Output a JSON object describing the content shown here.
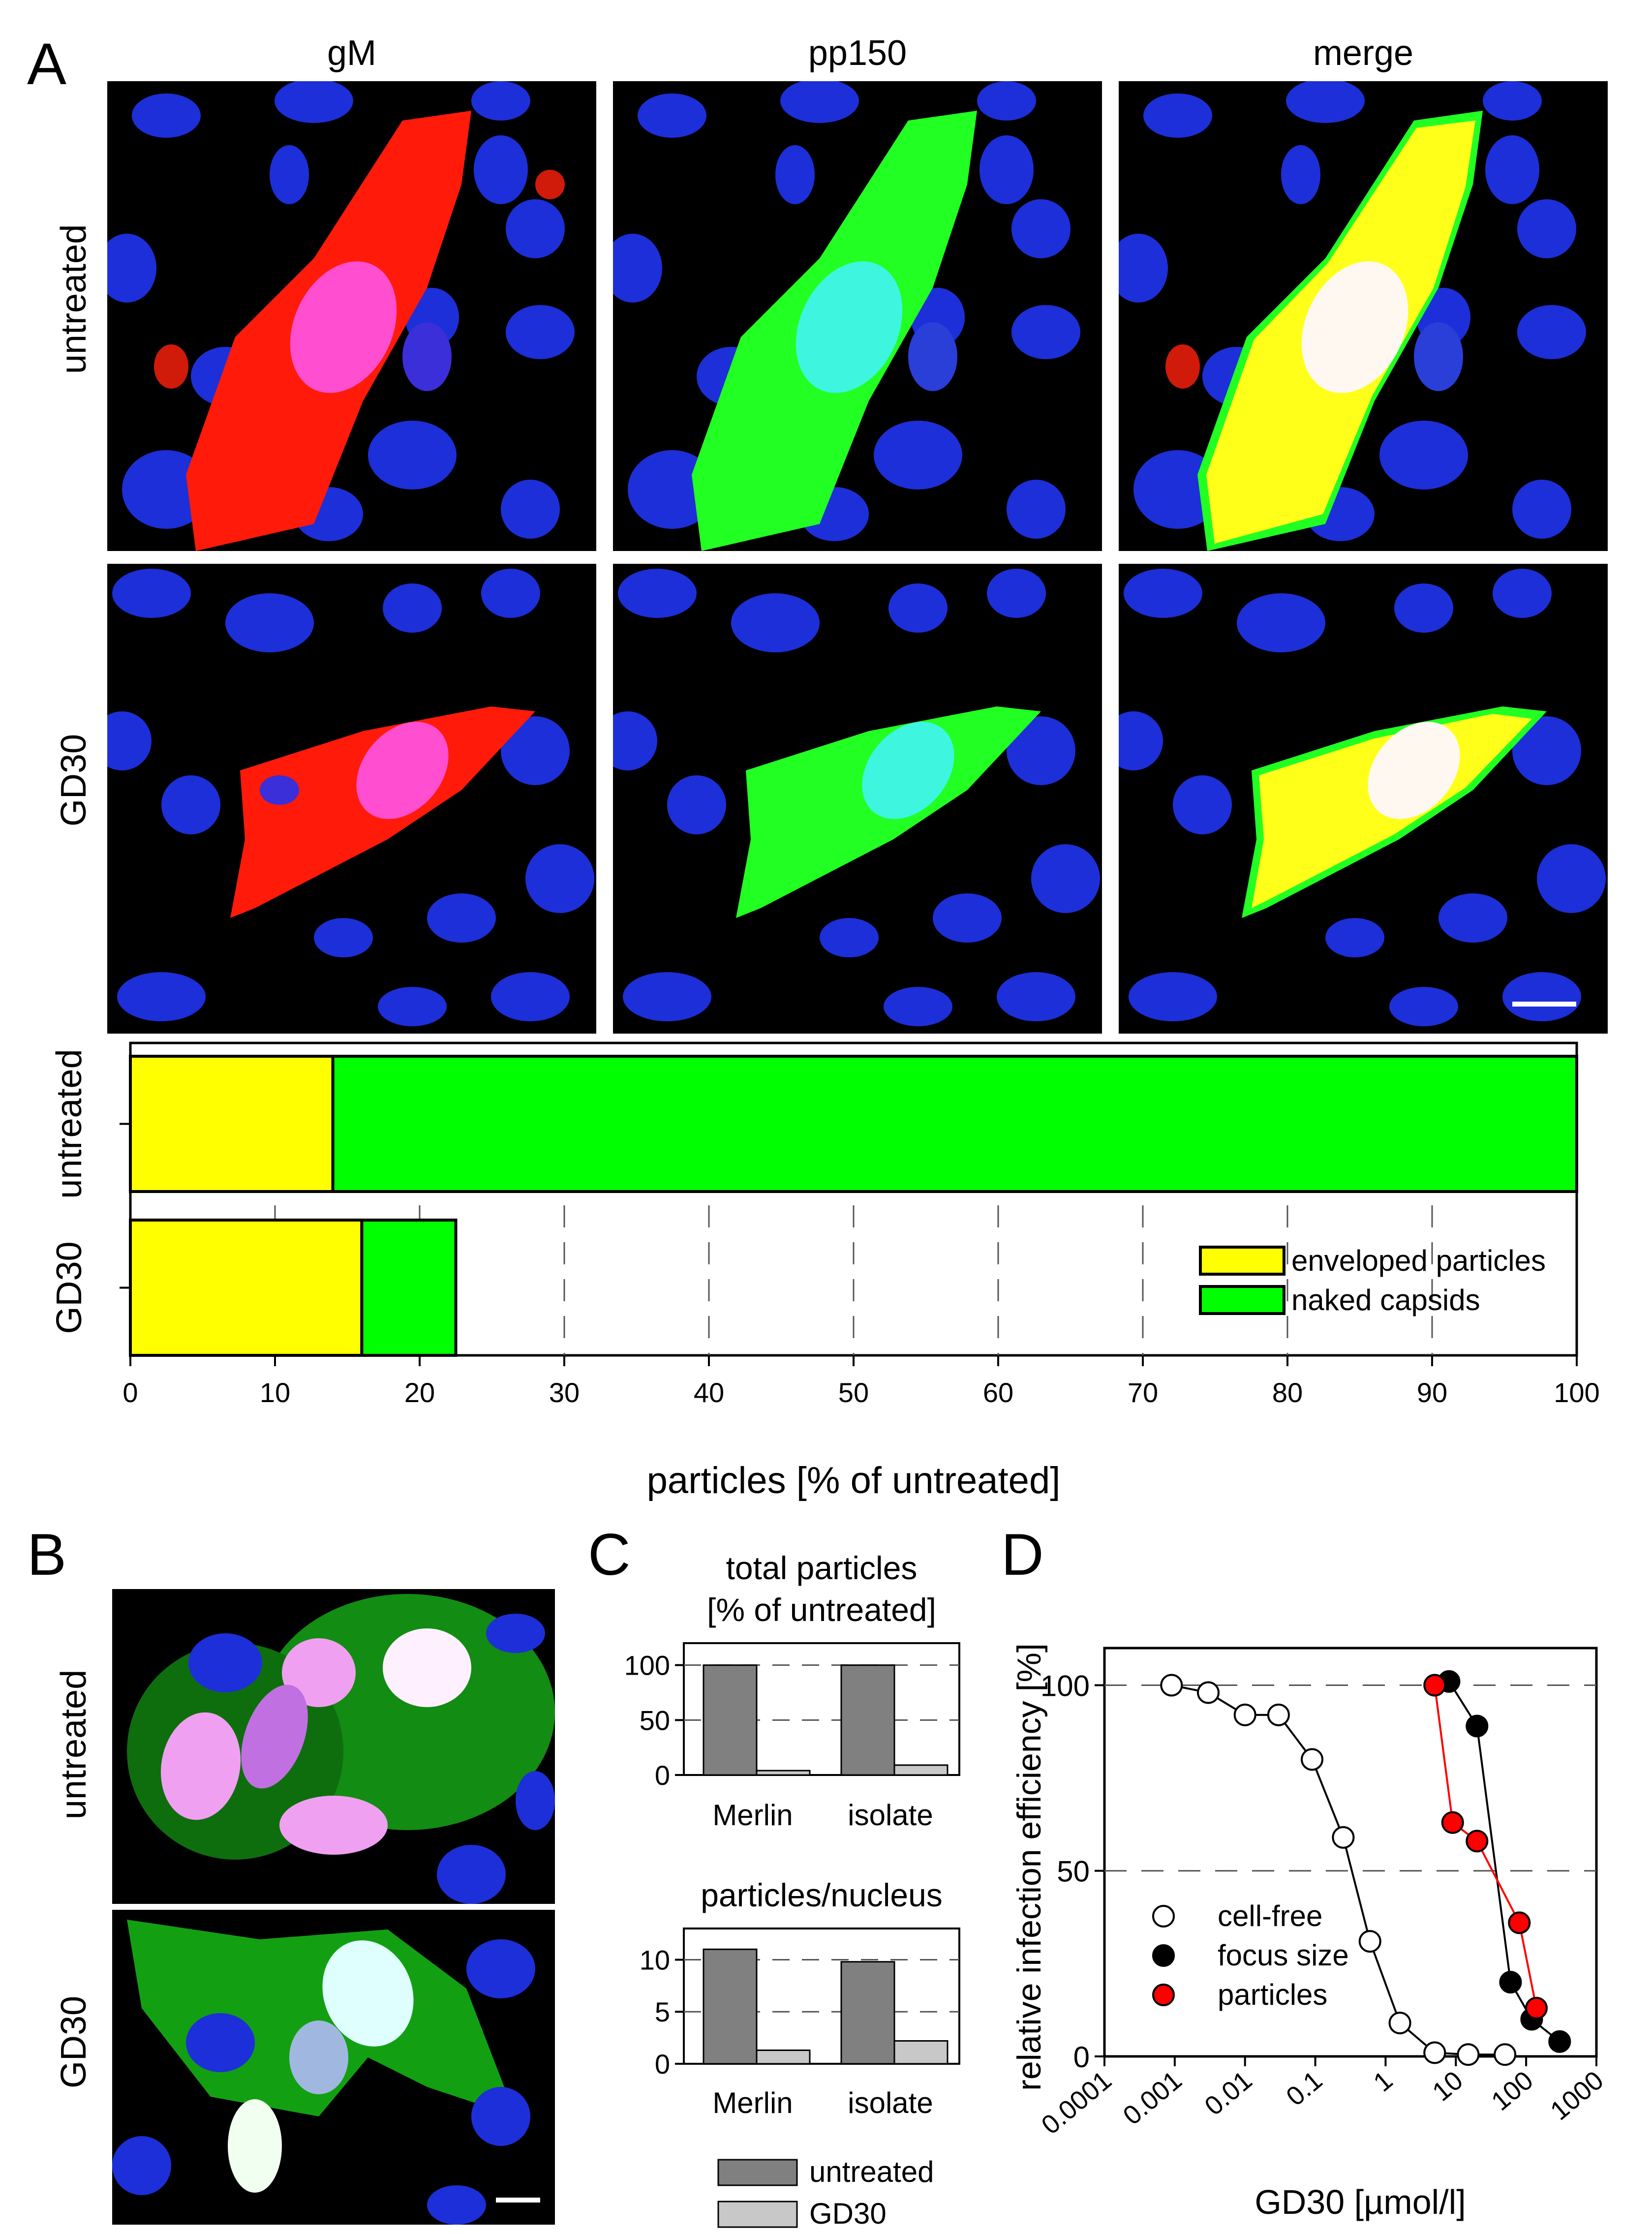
{
  "panel_labels": {
    "a": "A",
    "b": "B",
    "c": "C",
    "d": "D"
  },
  "panel_a": {
    "columns": [
      "gM",
      "pp150",
      "merge"
    ],
    "rows": [
      "untreated",
      "GD30"
    ],
    "micrographs": [
      {
        "row": "untreated",
        "channel": "gM",
        "stain": "red"
      },
      {
        "row": "untreated",
        "channel": "pp150",
        "stain": "green"
      },
      {
        "row": "untreated",
        "channel": "merge",
        "stain": "yellow"
      },
      {
        "row": "GD30",
        "channel": "gM",
        "stain": "red"
      },
      {
        "row": "GD30",
        "channel": "pp150",
        "stain": "green"
      },
      {
        "row": "GD30",
        "channel": "merge",
        "stain": "yellow"
      }
    ],
    "colors": {
      "nucleus": "#1d2fd8",
      "red": "#ff1a0a",
      "green": "#22ff22",
      "yellow": "#ffff1a"
    }
  },
  "panel_b": {
    "rows": [
      "untreated",
      "GD30"
    ]
  },
  "chart_data": [
    {
      "id": "A-bar",
      "type": "bar",
      "orientation": "horizontal",
      "stacked": true,
      "categories": [
        "untreated",
        "GD30"
      ],
      "series": [
        {
          "name": "enveloped particles",
          "color": "#ffff00",
          "values": [
            14,
            16
          ]
        },
        {
          "name": "naked capsids",
          "color": "#00ff00",
          "values": [
            86,
            6.5
          ]
        }
      ],
      "xlabel": "particles [% of untreated]",
      "xlim": [
        0,
        100
      ],
      "xticks": [
        "0",
        "10",
        "20",
        "30",
        "40",
        "50",
        "60",
        "70",
        "80",
        "90",
        "100"
      ],
      "grid": "vertical dashed",
      "legend": "bottom-right"
    },
    {
      "id": "C-top",
      "type": "bar",
      "title": "total particles\n[% of untreated]",
      "title_lines": [
        "total particles",
        "[% of untreated]"
      ],
      "categories": [
        "Merlin",
        "isolate"
      ],
      "series": [
        {
          "name": "untreated",
          "color": "#808080",
          "values": [
            100,
            100
          ]
        },
        {
          "name": "GD30",
          "color": "#c8c8c8",
          "values": [
            4,
            9
          ]
        }
      ],
      "ylim": [
        0,
        120
      ],
      "yticks": [
        "0",
        "50",
        "100"
      ],
      "grid": "horizontal dashed"
    },
    {
      "id": "C-bottom",
      "type": "bar",
      "title": "particles/nucleus",
      "categories": [
        "Merlin",
        "isolate"
      ],
      "series": [
        {
          "name": "untreated",
          "color": "#808080",
          "values": [
            11,
            9.8
          ]
        },
        {
          "name": "GD30",
          "color": "#c8c8c8",
          "values": [
            1.3,
            2.2
          ]
        }
      ],
      "ylim": [
        0,
        13
      ],
      "yticks": [
        "0",
        "5",
        "10"
      ],
      "grid": "horizontal dashed",
      "legend_entries": [
        "untreated",
        "GD30"
      ]
    },
    {
      "id": "D",
      "type": "scatter",
      "xscale": "log",
      "xlabel": "GD30 [µmol/l]",
      "ylabel": "relative infection efficiency [%]",
      "xlim": [
        0.0001,
        1000
      ],
      "ylim": [
        0,
        110
      ],
      "xticks": [
        "0.0001",
        "0.001",
        "0.01",
        "0.1",
        "1",
        "10",
        "100",
        "1000"
      ],
      "yticks": [
        "0",
        "50",
        "100"
      ],
      "grid": "horizontal dashed",
      "legend": "bottom-left",
      "series": [
        {
          "name": "cell-free",
          "marker": "open",
          "line": "#000000",
          "x": [
            0.0009,
            0.003,
            0.01,
            0.03,
            0.09,
            0.25,
            0.6,
            1.6,
            5,
            15,
            50
          ],
          "y": [
            100,
            98,
            92,
            92,
            80,
            59,
            31,
            9,
            1,
            0.5,
            0.5
          ]
        },
        {
          "name": "focus size",
          "marker": "filled",
          "color": "#000000",
          "line": "#000000",
          "x": [
            8,
            20,
            60,
            120,
            300
          ],
          "y": [
            101,
            89,
            20,
            10,
            4
          ]
        },
        {
          "name": "particles",
          "marker": "filled",
          "color": "#ff0000",
          "line": "#ff0000",
          "x": [
            5,
            9,
            20,
            80,
            140
          ],
          "y": [
            100,
            63,
            58,
            36,
            13
          ]
        }
      ]
    }
  ]
}
